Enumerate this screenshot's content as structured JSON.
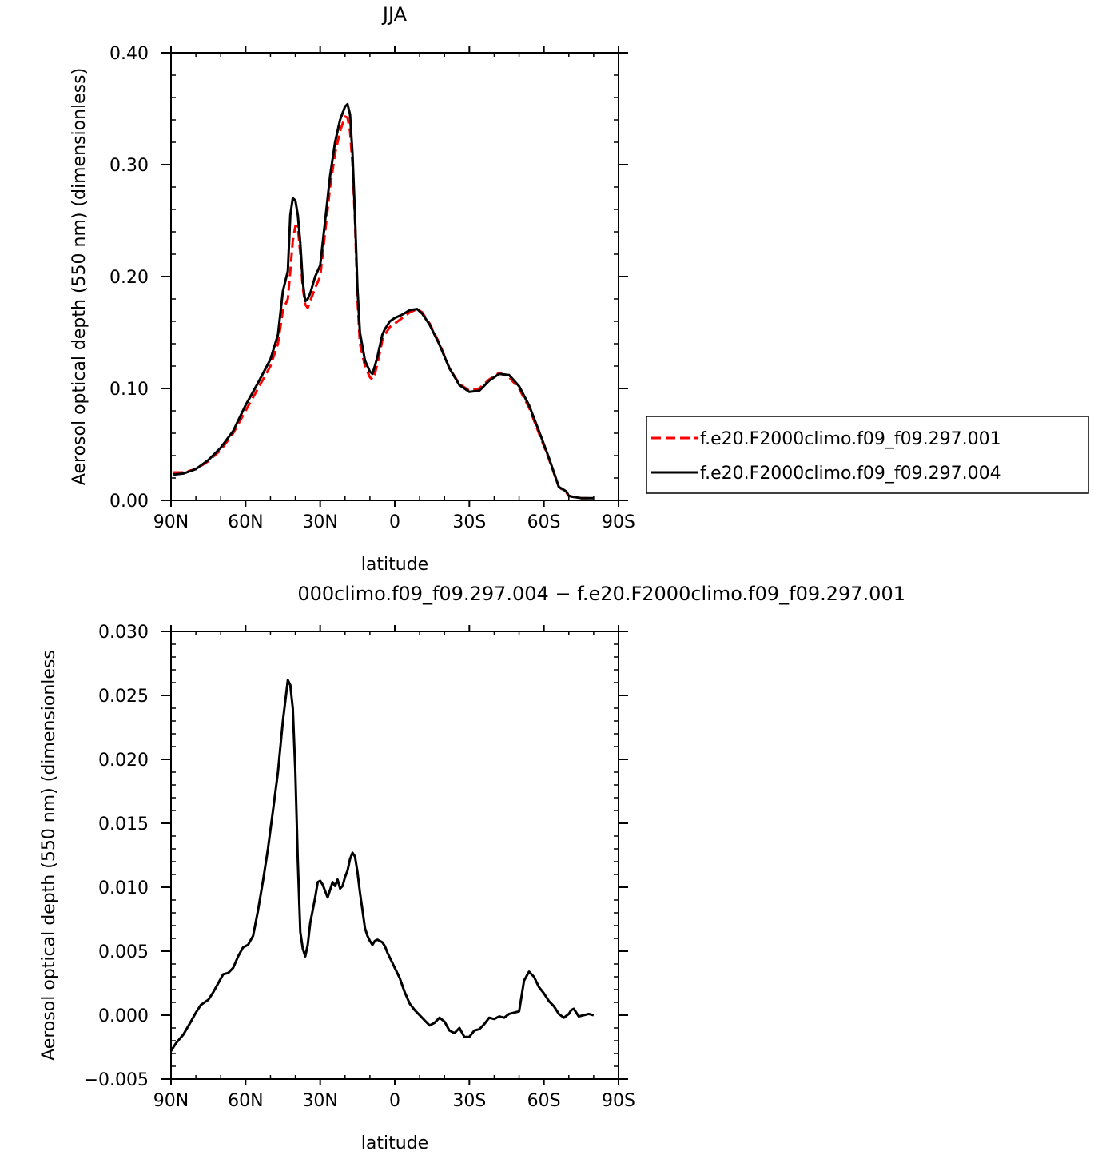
{
  "chart_data": [
    {
      "type": "line",
      "title": "JJA",
      "xlabel": "latitude",
      "ylabel": "Aerosol optical depth (550 nm) (dimensionless)",
      "xlim": [
        90,
        -90
      ],
      "ylim": [
        0,
        0.4
      ],
      "x_ticks": [
        90,
        60,
        30,
        0,
        -30,
        -60,
        -90
      ],
      "x_tick_labels": [
        "90N",
        "60N",
        "30N",
        "0",
        "30S",
        "60S",
        "90S"
      ],
      "y_ticks": [
        0,
        0.1,
        0.2,
        0.3,
        0.4
      ],
      "y_tick_labels": [
        "0.00",
        "0.10",
        "0.20",
        "0.30",
        "0.40"
      ],
      "legend_position": "right",
      "series": [
        {
          "name": "f.e20.F2000climo.f09_f09.297.001",
          "color": "#ff0000",
          "dash": "dashed",
          "x": [
            89,
            85,
            80,
            75,
            70,
            65,
            60,
            55,
            50,
            47,
            45,
            43,
            42,
            41,
            40,
            39,
            38,
            37,
            36,
            35,
            34,
            32,
            30,
            28,
            26,
            24,
            22,
            20,
            19,
            18,
            17,
            16,
            15,
            14,
            12,
            10,
            9,
            8,
            7,
            6,
            5,
            4,
            2,
            0,
            -3,
            -6,
            -9,
            -11,
            -14,
            -18,
            -22,
            -26,
            -30,
            -34,
            -38,
            -42,
            -46,
            -50,
            -54,
            -58,
            -62,
            -66,
            -69,
            -70,
            -72,
            -75,
            -80
          ],
          "y": [
            0.025,
            0.025,
            0.028,
            0.035,
            0.045,
            0.06,
            0.08,
            0.1,
            0.12,
            0.14,
            0.17,
            0.18,
            0.205,
            0.232,
            0.245,
            0.245,
            0.22,
            0.19,
            0.175,
            0.172,
            0.178,
            0.19,
            0.2,
            0.24,
            0.28,
            0.31,
            0.33,
            0.343,
            0.342,
            0.33,
            0.3,
            0.25,
            0.18,
            0.14,
            0.12,
            0.11,
            0.108,
            0.113,
            0.122,
            0.132,
            0.143,
            0.148,
            0.155,
            0.158,
            0.163,
            0.168,
            0.171,
            0.168,
            0.158,
            0.14,
            0.118,
            0.104,
            0.098,
            0.1,
            0.108,
            0.114,
            0.11,
            0.1,
            0.083,
            0.06,
            0.037,
            0.012,
            0.007,
            0.004,
            0.003,
            0.002,
            0.002
          ]
        },
        {
          "name": "f.e20.F2000climo.f09_f09.297.004",
          "color": "#000000",
          "dash": "solid",
          "x": [
            89,
            85,
            80,
            75,
            70,
            65,
            60,
            55,
            50,
            47,
            45,
            43,
            42,
            41,
            40,
            39,
            38,
            37,
            36,
            35,
            34,
            32,
            30,
            28,
            26,
            24,
            22,
            20,
            19,
            18,
            17,
            16,
            15,
            14,
            12,
            10,
            9,
            8,
            7,
            6,
            5,
            4,
            2,
            0,
            -3,
            -6,
            -9,
            -11,
            -14,
            -18,
            -22,
            -26,
            -30,
            -34,
            -38,
            -42,
            -46,
            -50,
            -54,
            -58,
            -62,
            -66,
            -69,
            -70,
            -72,
            -75,
            -80
          ],
          "y": [
            0.023,
            0.024,
            0.028,
            0.036,
            0.047,
            0.062,
            0.085,
            0.105,
            0.126,
            0.148,
            0.187,
            0.205,
            0.255,
            0.27,
            0.268,
            0.255,
            0.23,
            0.195,
            0.178,
            0.18,
            0.185,
            0.2,
            0.21,
            0.25,
            0.29,
            0.32,
            0.34,
            0.352,
            0.354,
            0.345,
            0.31,
            0.255,
            0.19,
            0.15,
            0.125,
            0.115,
            0.113,
            0.12,
            0.128,
            0.138,
            0.148,
            0.153,
            0.16,
            0.163,
            0.166,
            0.17,
            0.171,
            0.167,
            0.157,
            0.139,
            0.118,
            0.103,
            0.097,
            0.098,
            0.107,
            0.113,
            0.112,
            0.102,
            0.085,
            0.062,
            0.038,
            0.012,
            0.008,
            0.004,
            0.003,
            0.002,
            0.002
          ]
        }
      ]
    },
    {
      "type": "line",
      "title": "000climo.f09_f09.297.004 − f.e20.F2000climo.f09_f09.297.001",
      "xlabel": "latitude",
      "ylabel": "Aerosol optical depth (550 nm) (dimensionless",
      "xlim": [
        90,
        -90
      ],
      "ylim": [
        -0.005,
        0.03
      ],
      "x_ticks": [
        90,
        60,
        30,
        0,
        -30,
        -60,
        -90
      ],
      "x_tick_labels": [
        "90N",
        "60N",
        "30N",
        "0",
        "30S",
        "60S",
        "90S"
      ],
      "y_ticks": [
        -0.005,
        0,
        0.005,
        0.01,
        0.015,
        0.02,
        0.025,
        0.03
      ],
      "y_tick_labels": [
        "−0.005",
        "0.000",
        "0.005",
        "0.010",
        "0.015",
        "0.020",
        "0.025",
        "0.030"
      ],
      "series": [
        {
          "color": "#000000",
          "dash": "solid",
          "x": [
            90,
            88,
            85,
            82,
            80,
            78,
            75,
            73,
            71,
            69,
            67,
            65,
            63,
            61,
            59,
            57,
            55,
            53,
            51,
            49,
            47,
            45,
            43,
            42,
            41,
            40,
            39,
            38,
            37,
            36,
            35,
            34,
            33,
            32,
            31,
            30,
            29,
            28,
            27,
            26,
            25,
            24,
            23,
            22,
            21,
            20,
            19,
            18,
            17,
            16,
            15,
            14,
            13,
            12,
            11,
            10,
            9,
            8,
            7,
            6,
            5,
            4,
            3,
            2,
            1,
            0,
            -1,
            -2,
            -4,
            -6,
            -8,
            -10,
            -12,
            -14,
            -16,
            -18,
            -20,
            -22,
            -24,
            -26,
            -28,
            -30,
            -32,
            -34,
            -36,
            -38,
            -40,
            -42,
            -44,
            -46,
            -48,
            -50,
            -52,
            -54,
            -56,
            -58,
            -60,
            -62,
            -64,
            -66,
            -68,
            -70,
            -71,
            -72,
            -74,
            -76,
            -78,
            -80
          ],
          "y": [
            -0.0028,
            -0.0022,
            -0.0015,
            -0.0005,
            0.0002,
            0.0008,
            0.0012,
            0.0018,
            0.0025,
            0.0032,
            0.0033,
            0.0037,
            0.0046,
            0.0053,
            0.0055,
            0.0062,
            0.0082,
            0.0105,
            0.013,
            0.016,
            0.019,
            0.023,
            0.0262,
            0.0258,
            0.024,
            0.019,
            0.012,
            0.0065,
            0.0052,
            0.0046,
            0.0055,
            0.0072,
            0.0082,
            0.0092,
            0.0104,
            0.0105,
            0.0102,
            0.0097,
            0.0092,
            0.0098,
            0.0104,
            0.0101,
            0.0106,
            0.0099,
            0.0101,
            0.0108,
            0.0113,
            0.0122,
            0.0127,
            0.0124,
            0.0112,
            0.0096,
            0.0082,
            0.0068,
            0.0062,
            0.0058,
            0.0055,
            0.0058,
            0.0059,
            0.0058,
            0.0057,
            0.0054,
            0.0049,
            0.0045,
            0.0041,
            0.0037,
            0.0033,
            0.0029,
            0.0018,
            0.0009,
            0.0004,
            0.0,
            -0.0004,
            -0.0008,
            -0.0006,
            -0.0002,
            -0.0005,
            -0.0012,
            -0.0014,
            -0.001,
            -0.0017,
            -0.0017,
            -0.0012,
            -0.0011,
            -0.0007,
            -0.0002,
            -0.0003,
            -0.0001,
            -0.0002,
            0.0001,
            0.0002,
            0.0003,
            0.0027,
            0.0034,
            0.003,
            0.0022,
            0.0017,
            0.0011,
            0.0007,
            0.0001,
            -0.0002,
            0.0001,
            0.0004,
            0.0005,
            -0.0001,
            0.0,
            0.0001,
            0.0
          ]
        }
      ]
    }
  ]
}
